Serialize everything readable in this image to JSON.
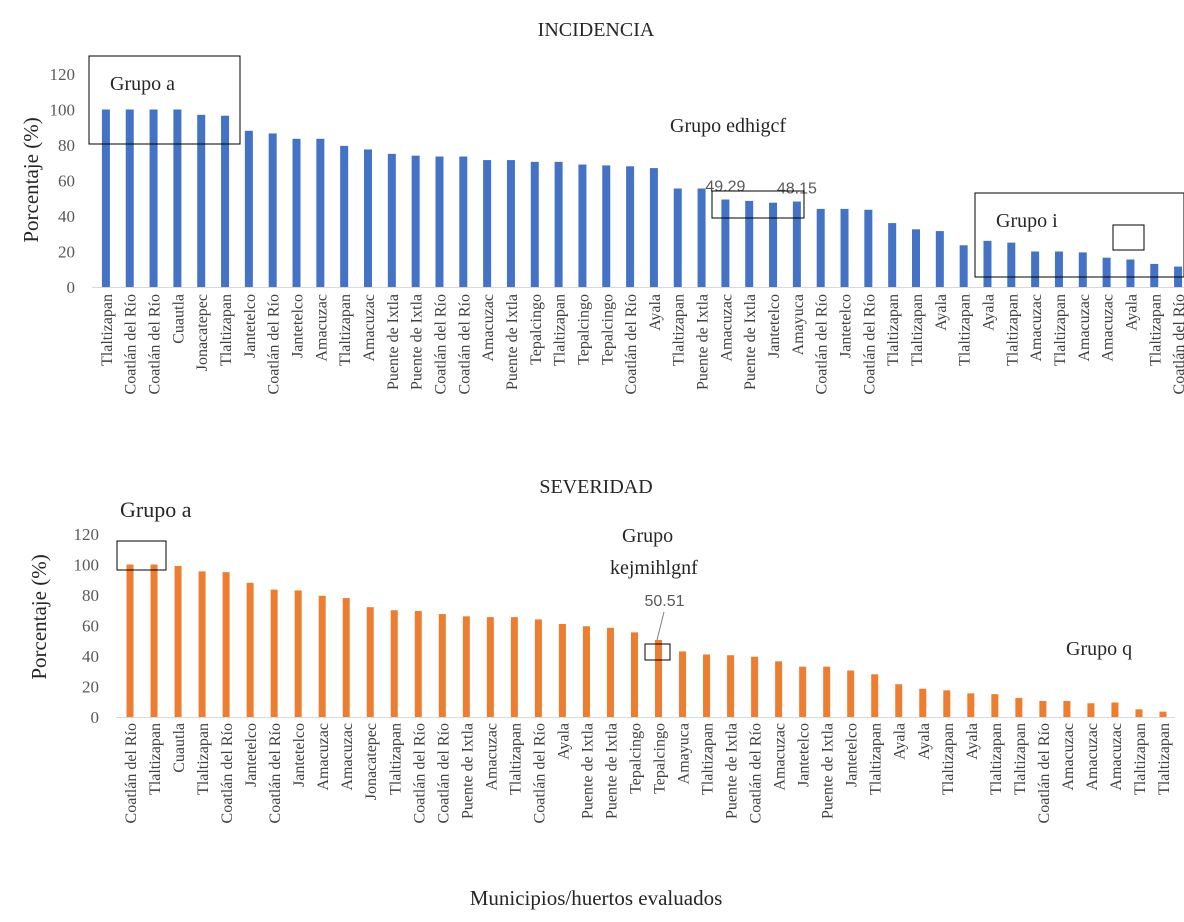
{
  "xlabel": "Municipios/huertos evaluados",
  "chart_data": [
    {
      "type": "bar",
      "title": "INCIDENCIA",
      "ylabel": "Porcentaje (%)",
      "ylim": [
        0,
        120
      ],
      "yticks": [
        0,
        20,
        40,
        60,
        80,
        100,
        120
      ],
      "color": "#4472C4",
      "grid": false,
      "categories": [
        "Tlaltizapan",
        "Coatlán del Río",
        "Coatlán del Río",
        "Cuautla",
        "Jonacatepec",
        "Tlaltizapan",
        "Jantetelco",
        "Coatlán del Río",
        "Jantetelco",
        "Amacuzac",
        "Tlaltizapan",
        "Amacuzac",
        "Puente de Ixtla",
        "Puente de Ixtla",
        "Coatlán del Río",
        "Coatlán del Río",
        "Amacuzac",
        "Puente de Ixtla",
        "Tepalcingo",
        "Tlaltizapan",
        "Tepalcingo",
        "Tepalcingo",
        "Coatlán del Río",
        "Ayala",
        "Tlaltizapan",
        "Puente de Ixtla",
        "Amacuzac",
        "Puente de Ixtla",
        "Jantetelco",
        "Amayuca",
        "Coatlán del Río",
        "Jantetelco",
        "Coatlán del Río",
        "Tlaltizapan",
        "Tlaltizapan",
        "Ayala",
        "Tlaltizapan",
        "Ayala",
        "Tlaltizapan",
        "Amacuzac",
        "Tlaltizapan",
        "Amacuzac",
        "Amacuzac",
        "Ayala",
        "Tlaltizapan",
        "Coatlán del Río"
      ],
      "values": [
        100,
        100,
        100,
        100,
        97,
        96.5,
        88,
        86.5,
        83.5,
        83.5,
        79.5,
        77.5,
        75,
        74,
        73.5,
        73.5,
        71.5,
        71.5,
        70.5,
        70.5,
        69,
        68.5,
        68,
        67,
        55.5,
        55.5,
        49.29,
        48.5,
        47.5,
        48.15,
        44,
        44,
        43.5,
        36,
        32.5,
        31.5,
        23.5,
        26,
        25,
        20,
        20,
        19.5,
        16.5,
        15.5,
        13,
        11.5
      ],
      "data_labels": [
        {
          "index": 26,
          "text": "49.29"
        },
        {
          "index": 29,
          "text": "48.15"
        }
      ],
      "annotations": [
        "Grupo a",
        "Grupo edhigcf",
        "Grupo i"
      ]
    },
    {
      "type": "bar",
      "title": "SEVERIDAD",
      "ylabel": "Porcentaje (%)",
      "ylim": [
        0,
        120
      ],
      "yticks": [
        0,
        20,
        40,
        60,
        80,
        100,
        120
      ],
      "color": "#ED7D31",
      "grid": false,
      "categories": [
        "Coatlán del Río",
        "Tlaltizapan",
        "Cuautla",
        "Tlaltizapan",
        "Coatlán del Río",
        "Jantetelco",
        "Coatlán del Río",
        "Jantetelco",
        "Amacuzac",
        "Amacuzac",
        "Jonacatepec",
        "Tlaltizapan",
        "Coatlán del Río",
        "Coatlán del Río",
        "Puente de Ixtla",
        "Amacuzac",
        "Tlaltizapan",
        "Coatlán del Río",
        "Ayala",
        "Puente de Ixtla",
        "Puente de Ixtla",
        "Tepalcingo",
        "Tepalcingo",
        "Amayuca",
        "Tlaltizapan",
        "Puente de Ixtla",
        "Coatlán del Río",
        "Amacuzac",
        "Jantetelco",
        "Puente de Ixtla",
        "Jantetelco",
        "Tlaltizapan",
        "Ayala",
        "Ayala",
        "Tlaltizapan",
        "Ayala",
        "Tlaltizapan",
        "Tlaltizapan",
        "Coatlán del Río",
        "Amacuzac",
        "Amacuzac",
        "Amacuzac",
        "Tlaltizapan",
        "Tlaltizapan"
      ],
      "values": [
        100,
        100,
        99,
        95.5,
        95,
        88,
        83.5,
        83,
        79.5,
        78,
        72,
        70,
        69.5,
        67.5,
        66,
        65.5,
        65.5,
        64,
        61,
        59.5,
        58.5,
        55.5,
        50.51,
        43,
        41,
        40.5,
        39.5,
        36.5,
        33,
        33,
        30.5,
        28,
        21.5,
        18.5,
        17.5,
        15.5,
        15,
        12.5,
        10.5,
        10.5,
        9,
        9.5,
        5,
        3.5
      ],
      "data_labels": [
        {
          "index": 22,
          "text": "50.51"
        }
      ],
      "annotations": [
        "Grupo a",
        "Grupo",
        "kejmihlgnf",
        "Grupo q"
      ]
    }
  ]
}
